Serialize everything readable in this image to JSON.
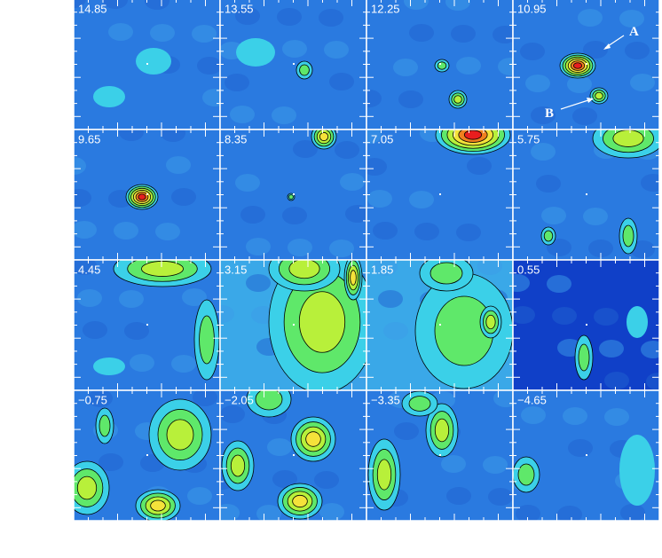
{
  "panels": [
    {
      "label": "14.85"
    },
    {
      "label": "13.55"
    },
    {
      "label": "12.25"
    },
    {
      "label": "10.95"
    },
    {
      "label": "9.65"
    },
    {
      "label": "8.35"
    },
    {
      "label": "7.05"
    },
    {
      "label": "5.75"
    },
    {
      "label": "4.45"
    },
    {
      "label": "3.15"
    },
    {
      "label": "1.85"
    },
    {
      "label": "0.55"
    },
    {
      "label": "−0.75"
    },
    {
      "label": "−2.05"
    },
    {
      "label": "−3.35"
    },
    {
      "label": "−4.65"
    }
  ],
  "annotations": [
    {
      "text": "A"
    },
    {
      "text": "B"
    }
  ]
}
